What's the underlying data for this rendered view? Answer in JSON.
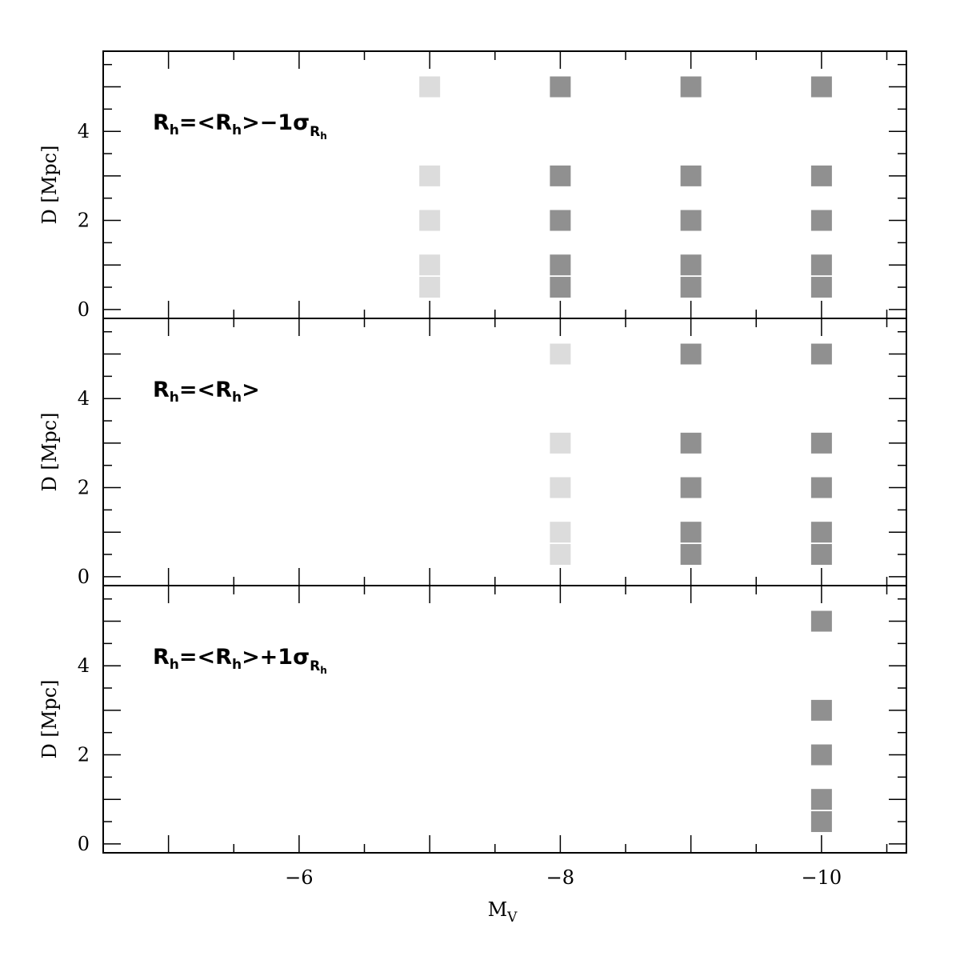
{
  "chart_data": {
    "type": "scatter",
    "x_label": "M",
    "x_label_subscript": "V",
    "y_label": "D  [Mpc]",
    "xlim": [
      -4.5,
      -10.65
    ],
    "ylim": [
      -0.2,
      5.8
    ],
    "x_ticks": [
      -6,
      -8,
      -10
    ],
    "x_tick_labels": [
      "−6",
      "−8",
      "−10"
    ],
    "y_ticks": [
      0,
      2,
      4
    ],
    "y_tick_labels": [
      "0",
      "2",
      "4"
    ],
    "marker": "square",
    "colors": {
      "light": "#dcdcdc",
      "dark": "#909090"
    },
    "panels": [
      {
        "label": {
          "main": "R",
          "sub": "h",
          "eq": "=<",
          "main2": "R",
          "sub2": "h",
          "rest": ">−1σ",
          "sigma_sub": "R",
          "sigma_subsub": "h"
        },
        "points": [
          {
            "x": -7,
            "y": 5.0,
            "shade": "light"
          },
          {
            "x": -7,
            "y": 3.0,
            "shade": "light"
          },
          {
            "x": -7,
            "y": 2.0,
            "shade": "light"
          },
          {
            "x": -7,
            "y": 1.0,
            "shade": "light"
          },
          {
            "x": -7,
            "y": 0.5,
            "shade": "light"
          },
          {
            "x": -8,
            "y": 5.0,
            "shade": "dark"
          },
          {
            "x": -8,
            "y": 3.0,
            "shade": "dark"
          },
          {
            "x": -8,
            "y": 2.0,
            "shade": "dark"
          },
          {
            "x": -8,
            "y": 1.0,
            "shade": "dark"
          },
          {
            "x": -8,
            "y": 0.5,
            "shade": "dark"
          },
          {
            "x": -9,
            "y": 5.0,
            "shade": "dark"
          },
          {
            "x": -9,
            "y": 3.0,
            "shade": "dark"
          },
          {
            "x": -9,
            "y": 2.0,
            "shade": "dark"
          },
          {
            "x": -9,
            "y": 1.0,
            "shade": "dark"
          },
          {
            "x": -9,
            "y": 0.5,
            "shade": "dark"
          },
          {
            "x": -10,
            "y": 5.0,
            "shade": "dark"
          },
          {
            "x": -10,
            "y": 3.0,
            "shade": "dark"
          },
          {
            "x": -10,
            "y": 2.0,
            "shade": "dark"
          },
          {
            "x": -10,
            "y": 1.0,
            "shade": "dark"
          },
          {
            "x": -10,
            "y": 0.5,
            "shade": "dark"
          }
        ]
      },
      {
        "label": {
          "main": "R",
          "sub": "h",
          "eq": "=<",
          "main2": "R",
          "sub2": "h",
          "rest": ">",
          "sigma_sub": "",
          "sigma_subsub": ""
        },
        "points": [
          {
            "x": -8,
            "y": 5.0,
            "shade": "light"
          },
          {
            "x": -8,
            "y": 3.0,
            "shade": "light"
          },
          {
            "x": -8,
            "y": 2.0,
            "shade": "light"
          },
          {
            "x": -8,
            "y": 1.0,
            "shade": "light"
          },
          {
            "x": -8,
            "y": 0.5,
            "shade": "light"
          },
          {
            "x": -9,
            "y": 5.0,
            "shade": "dark"
          },
          {
            "x": -9,
            "y": 3.0,
            "shade": "dark"
          },
          {
            "x": -9,
            "y": 2.0,
            "shade": "dark"
          },
          {
            "x": -9,
            "y": 1.0,
            "shade": "dark"
          },
          {
            "x": -9,
            "y": 0.5,
            "shade": "dark"
          },
          {
            "x": -10,
            "y": 5.0,
            "shade": "dark"
          },
          {
            "x": -10,
            "y": 3.0,
            "shade": "dark"
          },
          {
            "x": -10,
            "y": 2.0,
            "shade": "dark"
          },
          {
            "x": -10,
            "y": 1.0,
            "shade": "dark"
          },
          {
            "x": -10,
            "y": 0.5,
            "shade": "dark"
          }
        ]
      },
      {
        "label": {
          "main": "R",
          "sub": "h",
          "eq": "=<",
          "main2": "R",
          "sub2": "h",
          "rest": ">+1σ",
          "sigma_sub": "R",
          "sigma_subsub": "h"
        },
        "points": [
          {
            "x": -10,
            "y": 5.0,
            "shade": "dark"
          },
          {
            "x": -10,
            "y": 3.0,
            "shade": "dark"
          },
          {
            "x": -10,
            "y": 2.0,
            "shade": "dark"
          },
          {
            "x": -10,
            "y": 1.0,
            "shade": "dark"
          },
          {
            "x": -10,
            "y": 0.5,
            "shade": "dark"
          }
        ]
      }
    ]
  }
}
